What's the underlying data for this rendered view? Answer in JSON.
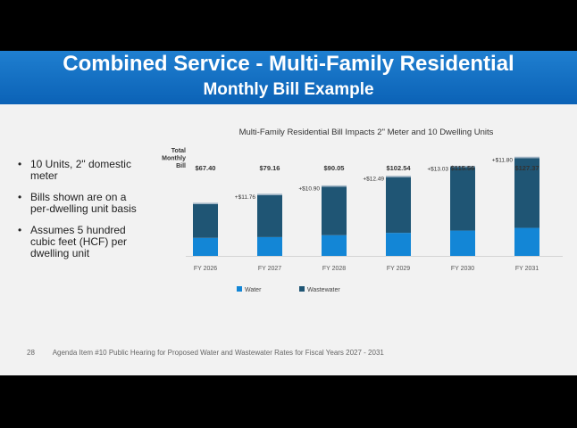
{
  "slide": {
    "title": "Combined Service - Multi-Family Residential",
    "subtitle": "Monthly Bill Example",
    "bullets": [
      "10 Units, 2\" domestic meter",
      "Bills shown are on a per-dwelling unit basis",
      "Assumes 5 hundred cubic feet (HCF) per dwelling unit"
    ],
    "bullet_glyph": "•",
    "footer": {
      "page": "28",
      "text": "Agenda Item #10 Public Hearing for Proposed Water and Wastewater Rates for Fiscal Years 2027 - 2031"
    }
  },
  "colors": {
    "banner": "#0b62b6",
    "water": "#1386d6",
    "wastewater": "#1f5574"
  },
  "chart_data": {
    "type": "bar",
    "stacked": true,
    "title": "Multi-Family Residential Bill Impacts 2\" Meter and 10 Dwelling Units",
    "total_label": "Total Monthly Bill",
    "categories": [
      "FY 2026",
      "FY 2027",
      "FY 2028",
      "FY 2029",
      "FY 2030",
      "FY 2031"
    ],
    "series": [
      {
        "name": "Water",
        "values": [
          23.5,
          24.5,
          27.0,
          30.0,
          33.0,
          36.5
        ]
      },
      {
        "name": "Wastewater",
        "values": [
          43.9,
          54.66,
          63.05,
          72.54,
          82.56,
          90.87
        ]
      }
    ],
    "totals": [
      "$67.40",
      "$79.16",
      "$90.05",
      "$102.54",
      "$115.56",
      "$127.37"
    ],
    "total_values": [
      67.4,
      79.16,
      90.05,
      102.54,
      115.56,
      127.37
    ],
    "increases": [
      "",
      "+$11.76",
      "+$10.90",
      "+$12.49",
      "+$13.03",
      "+$11.80"
    ],
    "ylim": [
      0,
      130
    ],
    "legend_position": "bottom"
  }
}
